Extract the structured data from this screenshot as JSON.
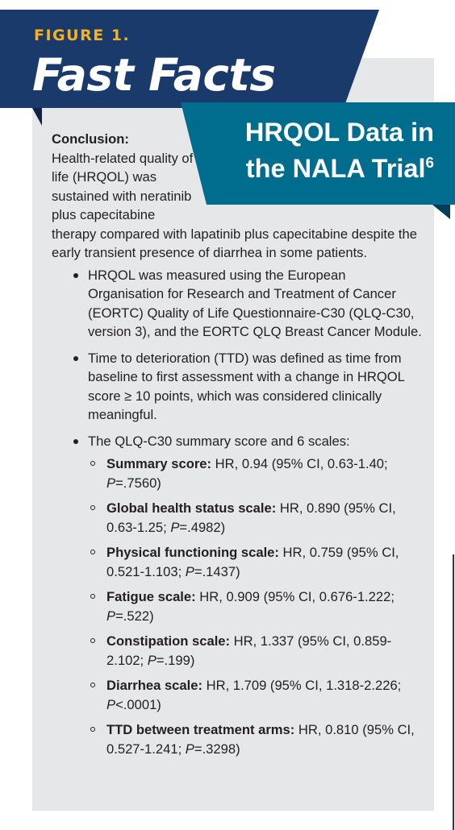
{
  "header": {
    "figure_label": "FIGURE 1.",
    "title": "Fast Facts",
    "subtitle_line1": "HRQOL Data in",
    "subtitle_line2": "the NALA Trial",
    "subtitle_ref": "6"
  },
  "colors": {
    "navy": "#1a3a6c",
    "teal": "#006d8f",
    "gold": "#f4b223",
    "panel": "#e6e7e8"
  },
  "conclusion": {
    "label": "Conclusion:",
    "text": "Health-related quality of life (HRQOL) was sustained with neratinib plus capecitabine therapy compared with lapatinib plus capecitabine despite the early transient presence of diarrhea in some patients."
  },
  "bullets": [
    "HRQOL was measured using the European Organisation for Research and Treatment of Cancer (EORTC) Quality of Life Question­naire-C30 (QLQ-C30, version 3), and the EORTC QLQ Breast Cancer Module.",
    "Time to deterioration (TTD) was defined as time from baseline to first assessment with a change in HRQOL score ≥ 10 points, which was consid­ered clinically meaningful.",
    "The QLQ-C30 summary score and 6 scales:"
  ],
  "scales": [
    {
      "term": "Summary score:",
      "pre": " HR, 0.94 (95% CI, 0.63-1.40; ",
      "p": "P",
      "post": "=.7560)"
    },
    {
      "term": "Global health status scale:",
      "pre": " HR, 0.890 (95% CI, 0.63-1.25; ",
      "p": "P",
      "post": "=.4982)"
    },
    {
      "term": "Physical functioning scale:",
      "pre": " HR, 0.759 (95% CI, 0.521-1.103; ",
      "p": "P",
      "post": "=.1437)"
    },
    {
      "term": "Fatigue scale:",
      "pre": " HR, 0.909 (95% CI, 0.676-1.222; ",
      "p": "P",
      "post": "=.522)"
    },
    {
      "term": "Constipation scale:",
      "pre": " HR, 1.337 (95% CI, 0.859-2.102; ",
      "p": "P",
      "post": "=.199)"
    },
    {
      "term": "Diarrhea scale:",
      "pre": " HR, 1.709 (95% CI, 1.318-2.226; ",
      "p": "P",
      "post": "<.0001)"
    },
    {
      "term": "TTD between treatment arms:",
      "pre": " HR, 0.810 (95% CI, 0.527-1.241; ",
      "p": "P",
      "post": "=.3298)"
    }
  ]
}
